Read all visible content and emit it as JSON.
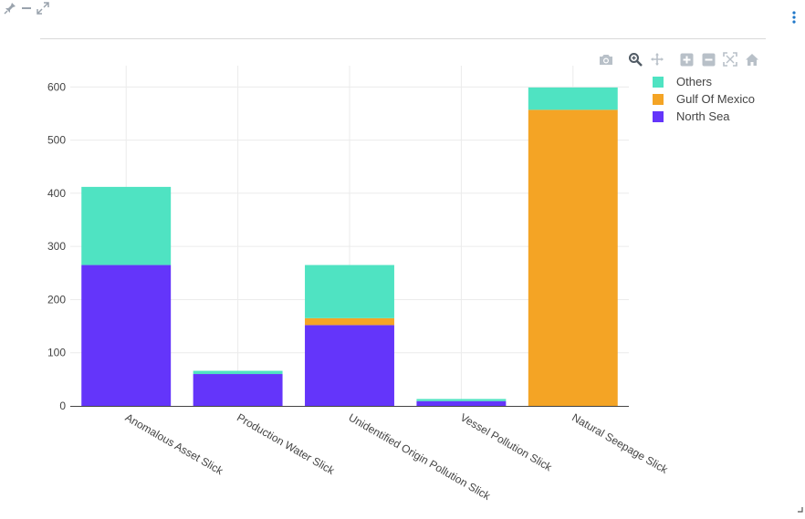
{
  "window": {
    "icons": [
      "pin-icon",
      "minimize-icon",
      "expand-icon",
      "more-options-icon"
    ]
  },
  "modebar": {
    "buttons": [
      "camera-icon",
      "zoom-icon",
      "pan-icon",
      "zoom-in-icon",
      "zoom-out-icon",
      "autoscale-icon",
      "reset-axes-icon"
    ],
    "active": "zoom-icon"
  },
  "chart_data": {
    "type": "bar",
    "stacked": true,
    "categories": [
      "Anomalous Asset Slick",
      "Production Water Slick",
      "Unidentified Origin Pollution Slick",
      "Vessel Pollution Slick",
      "Natural Seepage Slick"
    ],
    "series": [
      {
        "name": "North Sea",
        "color": "#6435fa",
        "values": [
          265,
          60,
          152,
          9,
          0
        ]
      },
      {
        "name": "Gulf Of Mexico",
        "color": "#f4a425",
        "values": [
          0,
          0,
          13,
          0,
          557
        ]
      },
      {
        "name": "Others",
        "color": "#4fe3c2",
        "values": [
          147,
          6,
          100,
          4,
          42
        ]
      }
    ],
    "legend_order": [
      "Others",
      "Gulf Of Mexico",
      "North Sea"
    ],
    "yticks": [
      0,
      100,
      200,
      300,
      400,
      500,
      600
    ],
    "ylim": [
      0,
      640
    ],
    "grid": true,
    "legend_position": "top-right",
    "xtick_rotation": 30
  }
}
